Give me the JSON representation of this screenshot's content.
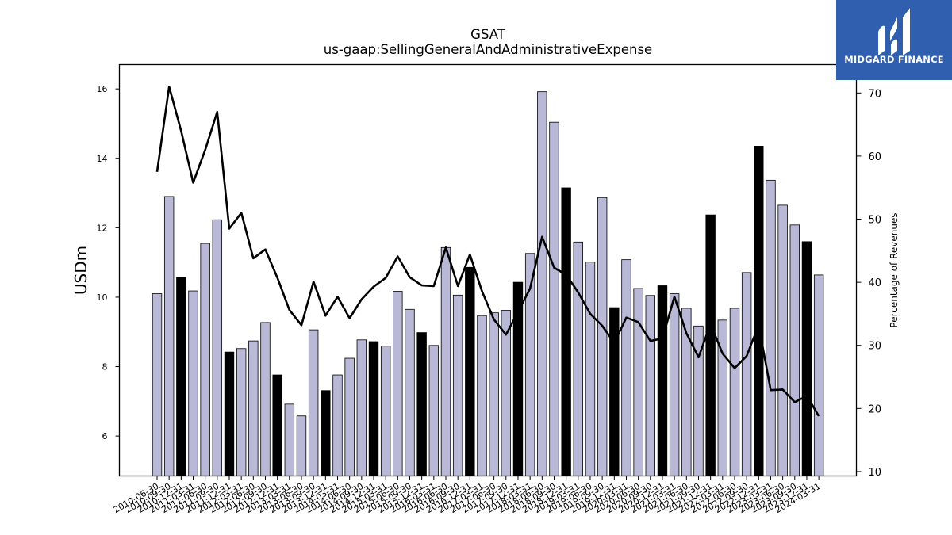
{
  "logo": {
    "text": "MIDGARD FINANCE",
    "icon": "midgard-m-icon",
    "background": "#2f5fae"
  },
  "chart_data": {
    "type": "bar",
    "title": "GSAT",
    "subtitle": "us-gaap:SellingGeneralAndAdministrativeExpense",
    "ylabel": "USDm",
    "y2label": "Percentage of Revenues",
    "ylim": [
      4.85,
      16.7
    ],
    "y2lim": [
      9.3,
      74.5
    ],
    "yticks": [
      6,
      8,
      10,
      12,
      14,
      16
    ],
    "y2ticks": [
      10,
      20,
      30,
      40,
      50,
      60,
      70
    ],
    "grid": false,
    "colors": {
      "bar": "#b9b8d6",
      "bar_q4": "#000000",
      "line": "#000000"
    },
    "categories": [
      "2010-06-30",
      "2010-09-30",
      "2010-12-31",
      "2011-03-31",
      "2011-06-30",
      "2011-09-30",
      "2011-12-31",
      "2012-03-31",
      "2012-06-30",
      "2012-09-30",
      "2012-12-31",
      "2013-03-31",
      "2013-06-30",
      "2013-09-30",
      "2013-12-31",
      "2014-03-31",
      "2014-06-30",
      "2014-09-30",
      "2014-12-31",
      "2015-03-31",
      "2015-06-30",
      "2015-09-30",
      "2015-12-31",
      "2016-03-31",
      "2016-06-30",
      "2016-09-30",
      "2016-12-31",
      "2017-03-31",
      "2017-06-30",
      "2017-09-30",
      "2017-12-31",
      "2018-03-31",
      "2018-06-30",
      "2018-09-30",
      "2018-12-31",
      "2019-03-31",
      "2019-06-30",
      "2019-09-30",
      "2019-12-31",
      "2020-03-31",
      "2020-06-30",
      "2020-09-30",
      "2020-12-31",
      "2021-03-31",
      "2021-06-30",
      "2021-09-30",
      "2021-12-31",
      "2022-03-31",
      "2022-06-30",
      "2022-09-30",
      "2022-12-31",
      "2023-03-31",
      "2023-06-30",
      "2023-09-30",
      "2023-12-31",
      "2024-03-31"
    ],
    "series": [
      {
        "values": [
          10.1,
          12.9,
          10.57,
          10.18,
          11.55,
          12.23,
          8.42,
          8.52,
          8.74,
          9.27,
          7.76,
          6.92,
          6.58,
          9.06,
          7.31,
          7.76,
          8.24,
          8.77,
          8.72,
          8.59,
          10.17,
          9.65,
          8.98,
          8.61,
          11.43,
          10.06,
          10.86,
          9.47,
          9.55,
          9.62,
          10.43,
          11.26,
          15.92,
          15.04,
          13.15,
          11.59,
          11.01,
          12.87,
          9.7,
          11.08,
          10.25,
          10.05,
          10.33,
          10.1,
          9.68,
          9.17,
          12.37,
          9.34,
          9.68,
          10.71,
          14.35,
          13.37,
          12.65,
          12.08,
          11.6,
          10.64
        ]
      },
      {
        "values": [
          57.5,
          71.0,
          64.0,
          55.8,
          61.0,
          67.0,
          48.5,
          51.0,
          43.8,
          45.2,
          40.7,
          35.6,
          33.2,
          40.1,
          34.7,
          37.7,
          34.3,
          37.3,
          39.3,
          40.7,
          44.1,
          40.8,
          39.5,
          39.4,
          45.5,
          39.4,
          44.4,
          38.6,
          34.1,
          31.7,
          35.3,
          39.0,
          47.2,
          42.3,
          41.2,
          38.4,
          35.0,
          33.1,
          30.4,
          34.4,
          33.7,
          30.7,
          31.1,
          37.7,
          31.9,
          28.1,
          33.4,
          28.7,
          26.4,
          28.3,
          33.2,
          22.9,
          23.0,
          21.0,
          22.0,
          18.8
        ]
      }
    ]
  }
}
